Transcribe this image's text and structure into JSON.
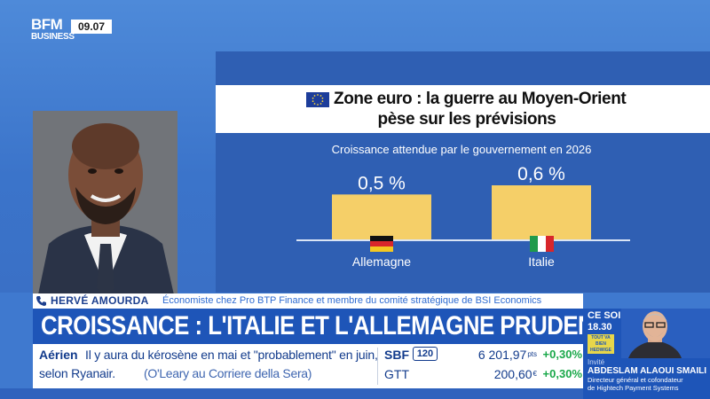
{
  "channel": {
    "logo_top": "BFM",
    "logo_bottom": "BUSINESS",
    "time": "09.07"
  },
  "graphic": {
    "title_line1": "Zone euro : la guerre au Moyen-Orient",
    "title_line2": "pèse sur les prévisions",
    "subtitle": "Croissance attendue par le gouvernement en 2026",
    "colors": {
      "bar": "#f5cf68",
      "baseline": "#d9e4f5",
      "panel": "#2f5fb3"
    }
  },
  "chart_data": {
    "type": "bar",
    "title": "Croissance attendue par le gouvernement en 2026",
    "categories": [
      "Allemagne",
      "Italie"
    ],
    "values": [
      0.5,
      0.6
    ],
    "value_labels": [
      "0,5 %",
      "0,6 %"
    ],
    "icons": [
      "germany-flag-icon",
      "italy-flag-icon"
    ],
    "ylim": [
      0,
      0.6
    ],
    "grid": false
  },
  "guest": {
    "name": "HERVÉ AMOURDA",
    "role": "Économiste chez Pro BTP Finance et membre du comité stratégique de BSI Economics"
  },
  "headline": "CROISSANCE : L'ITALIE ET L'ALLEMAGNE PRUDENTES",
  "ticker": {
    "kicker": "Aérien",
    "line1": "Il y aura du kérosène en mai et \"probablement\" en juin,",
    "line2": "selon Ryanair.",
    "source": "(O'Leary au Corriere della Sera)"
  },
  "market": [
    {
      "name": "SBF",
      "badge": "120",
      "value": "6 201,97",
      "unit": "pts",
      "change": "+0,30%"
    },
    {
      "name": "GTT",
      "badge": "",
      "value": "200,60",
      "unit": "€",
      "change": "+0,30%"
    }
  ],
  "promo": {
    "when": "CE SOIR",
    "time": "18.30",
    "show": "TOUT VA BIEN HEDWIGE CHEVRILLON",
    "label": "Invité",
    "name": "ABDESLAM ALAOUI SMAILI",
    "role_line1": "Directeur général et cofondateur",
    "role_line2": "de Hightech Payment Systems"
  }
}
